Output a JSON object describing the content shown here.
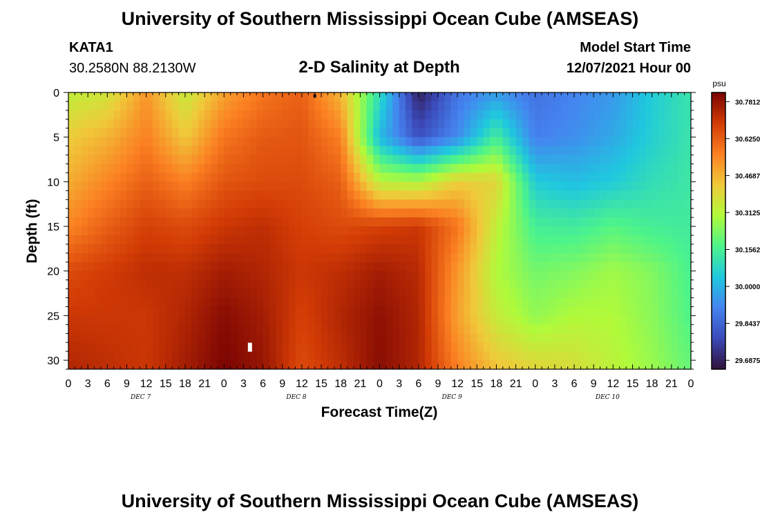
{
  "header": {
    "title": "University of Southern Mississippi Ocean Cube (AMSEAS)",
    "station": "KATA1",
    "coords": "30.2580N  88.2130W",
    "plot_title": "2-D Salinity at Depth",
    "model_start_label": "Model Start Time",
    "model_start_value": "12/07/2021 Hour 00"
  },
  "footer": {
    "title": "University of Southern Mississippi Ocean Cube (AMSEAS)"
  },
  "chart_data": {
    "type": "heatmap",
    "title": "2-D Salinity at Depth",
    "xlabel": "Forecast Time(Z)",
    "ylabel": "Depth (ft)",
    "x_tick_labels": [
      "0",
      "3",
      "6",
      "9",
      "12",
      "15",
      "18",
      "21",
      "0",
      "3",
      "6",
      "9",
      "12",
      "15",
      "18",
      "21",
      "0",
      "3",
      "6",
      "9",
      "12",
      "15",
      "18",
      "21",
      "0",
      "3",
      "6",
      "9",
      "12",
      "15",
      "18",
      "21",
      "0"
    ],
    "x_range_hours": [
      0,
      96
    ],
    "day_labels": [
      {
        "label": "DEC 7",
        "center_hour": 12
      },
      {
        "label": "DEC 8",
        "center_hour": 36
      },
      {
        "label": "DEC 9",
        "center_hour": 60
      },
      {
        "label": "DEC 10",
        "center_hour": 84
      }
    ],
    "y_ticks": [
      0,
      5,
      10,
      15,
      20,
      25,
      30
    ],
    "y_tick_labels": [
      "0",
      "5",
      "10",
      "15",
      "20",
      "25",
      "30"
    ],
    "y_range_ft": [
      0,
      31
    ],
    "colorbar": {
      "unit": "psu",
      "tick_values": [
        30.78125,
        30.625,
        30.46875,
        30.3125,
        30.15625,
        30.0,
        29.84375,
        29.6875
      ],
      "tick_labels": [
        "30.7812",
        "30.6250",
        "30.4687",
        "30.3125",
        "30.1562",
        "30.0000",
        "29.8437",
        "29.6875"
      ],
      "min": 29.65,
      "max": 30.82,
      "stops": [
        "#30123b",
        "#3b49b8",
        "#4584f0",
        "#1fc8de",
        "#4df48a",
        "#b1fa3a",
        "#f0c93a",
        "#fb8022",
        "#d23b05",
        "#7a0403"
      ]
    },
    "time_hours": [
      0,
      6,
      12,
      18,
      24,
      30,
      36,
      42,
      48,
      54,
      60,
      66,
      72,
      78,
      84,
      90,
      96
    ],
    "depth_ft": [
      0,
      5,
      10,
      15,
      20,
      25,
      31
    ],
    "salinity": [
      [
        30.33,
        30.36,
        30.52,
        30.34,
        30.5,
        30.58,
        30.62,
        30.46,
        30.1,
        29.68,
        29.88,
        29.95,
        29.87,
        29.91,
        29.95,
        30.05,
        30.12
      ],
      [
        30.42,
        30.47,
        30.56,
        30.43,
        30.58,
        30.63,
        30.64,
        30.56,
        30.01,
        29.8,
        29.92,
        30.15,
        29.9,
        29.93,
        29.98,
        30.06,
        30.12
      ],
      [
        30.48,
        30.55,
        30.62,
        30.56,
        30.64,
        30.66,
        30.66,
        30.62,
        30.32,
        30.3,
        30.42,
        30.4,
        30.05,
        30.02,
        30.05,
        30.1,
        30.13
      ],
      [
        30.55,
        30.62,
        30.68,
        30.66,
        30.7,
        30.72,
        30.68,
        30.66,
        30.68,
        30.7,
        30.58,
        30.33,
        30.15,
        30.14,
        30.18,
        30.15,
        30.14
      ],
      [
        30.66,
        30.69,
        30.72,
        30.72,
        30.76,
        30.74,
        30.7,
        30.72,
        30.76,
        30.73,
        30.52,
        30.3,
        30.22,
        30.24,
        30.28,
        30.24,
        30.16
      ],
      [
        30.7,
        30.7,
        30.7,
        30.74,
        30.8,
        30.76,
        30.68,
        30.74,
        30.79,
        30.74,
        30.5,
        30.34,
        30.26,
        30.3,
        30.3,
        30.25,
        30.17
      ],
      [
        30.74,
        30.72,
        30.7,
        30.76,
        30.82,
        30.78,
        30.66,
        30.72,
        30.8,
        30.74,
        30.56,
        30.44,
        30.4,
        30.38,
        30.32,
        30.27,
        30.2
      ]
    ],
    "annotations": [
      {
        "kind": "white-marker",
        "hour": 28,
        "depth_ft": 28.5
      },
      {
        "kind": "dark-marker",
        "hour": 38,
        "depth_ft": 0.2
      }
    ]
  }
}
